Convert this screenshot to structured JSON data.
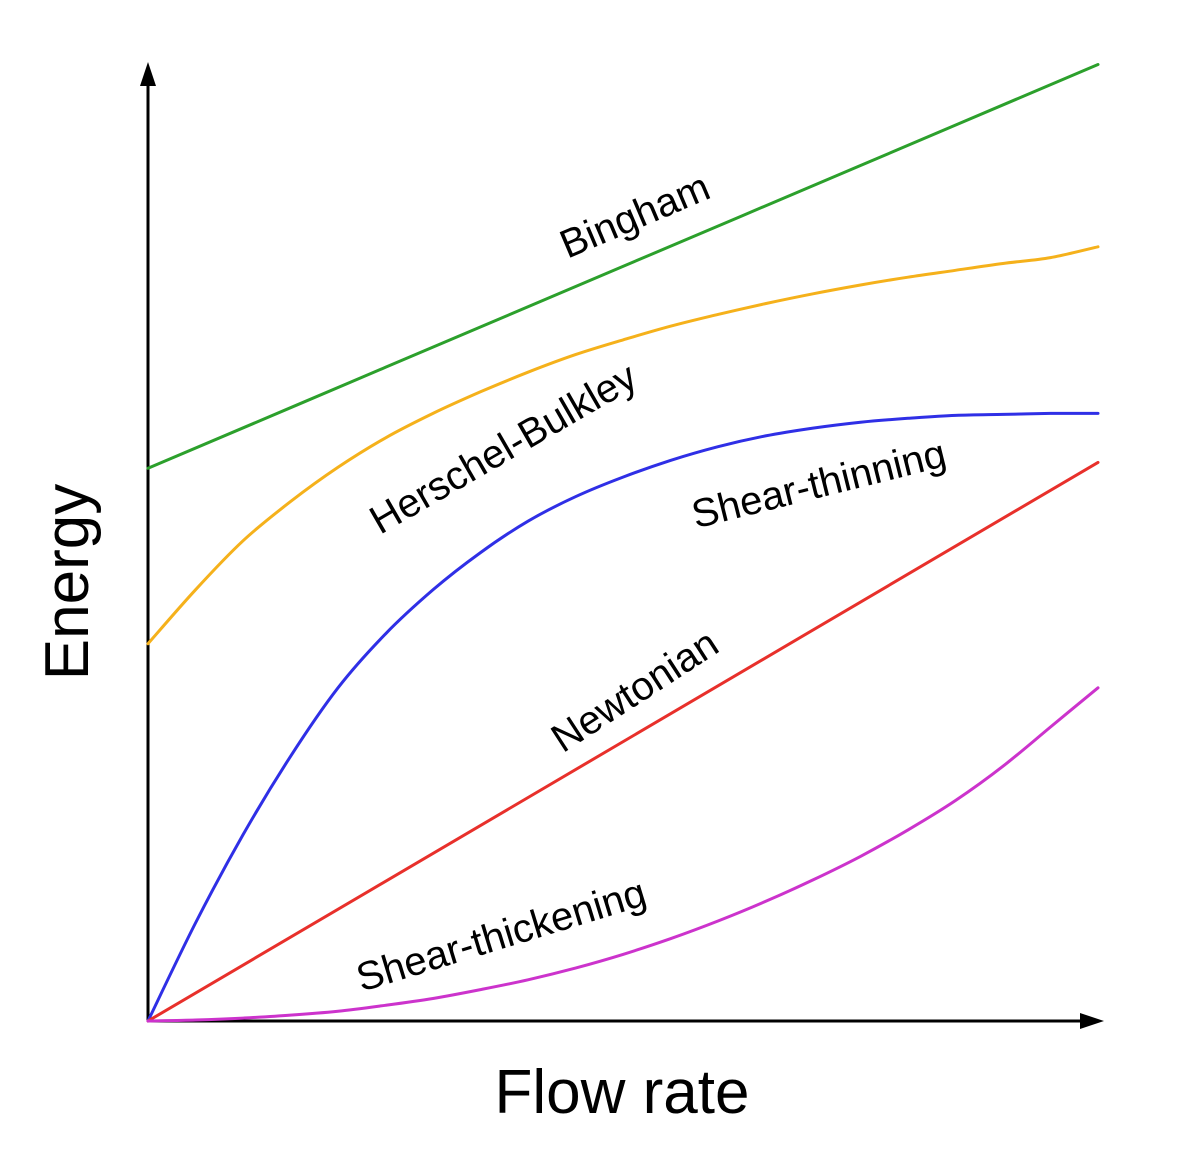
{
  "chart_data": {
    "type": "line",
    "title": "",
    "xlabel": "Flow rate",
    "ylabel": "Energy",
    "xlim": [
      0,
      1
    ],
    "ylim": [
      0,
      1
    ],
    "grid": false,
    "legend": "none",
    "series": [
      {
        "name": "Bingham",
        "color": "#2ca02c",
        "x": [
          0,
          0.25,
          0.5,
          0.75,
          1.0
        ],
        "y": [
          0.564,
          0.667,
          0.77,
          0.873,
          0.976
        ]
      },
      {
        "name": "Herschel-Bulkley",
        "color": "#f5b11b",
        "x": [
          0,
          0.05,
          0.1,
          0.15,
          0.2,
          0.25,
          0.3,
          0.35,
          0.4,
          0.45,
          0.5,
          0.55,
          0.6,
          0.65,
          0.7,
          0.75,
          0.8,
          0.85,
          0.9,
          0.95,
          1.0
        ],
        "y": [
          0.385,
          0.44,
          0.49,
          0.53,
          0.565,
          0.595,
          0.62,
          0.642,
          0.662,
          0.68,
          0.695,
          0.709,
          0.721,
          0.732,
          0.742,
          0.751,
          0.759,
          0.766,
          0.773,
          0.779,
          0.79
        ]
      },
      {
        "name": "Shear-thinning",
        "color": "#2f2fe6",
        "x": [
          0,
          0.05,
          0.1,
          0.15,
          0.2,
          0.25,
          0.3,
          0.35,
          0.4,
          0.45,
          0.5,
          0.55,
          0.6,
          0.65,
          0.7,
          0.75,
          0.8,
          0.85,
          0.9,
          0.95,
          1.0
        ],
        "y": [
          0,
          0.1,
          0.19,
          0.27,
          0.34,
          0.395,
          0.44,
          0.478,
          0.51,
          0.535,
          0.555,
          0.572,
          0.586,
          0.597,
          0.605,
          0.611,
          0.615,
          0.618,
          0.619,
          0.62,
          0.62
        ]
      },
      {
        "name": "Newtonian",
        "color": "#e8302b",
        "x": [
          0,
          1.0
        ],
        "y": [
          0,
          0.57
        ]
      },
      {
        "name": "Shear-thickening",
        "color": "#cc33cc",
        "x": [
          0,
          0.05,
          0.1,
          0.15,
          0.2,
          0.25,
          0.3,
          0.35,
          0.4,
          0.45,
          0.5,
          0.55,
          0.6,
          0.65,
          0.7,
          0.75,
          0.8,
          0.85,
          0.9,
          0.95,
          1.0
        ],
        "y": [
          0,
          0.001,
          0.003,
          0.006,
          0.01,
          0.016,
          0.023,
          0.032,
          0.042,
          0.054,
          0.068,
          0.084,
          0.102,
          0.122,
          0.144,
          0.168,
          0.195,
          0.225,
          0.26,
          0.3,
          0.34
        ]
      }
    ]
  }
}
